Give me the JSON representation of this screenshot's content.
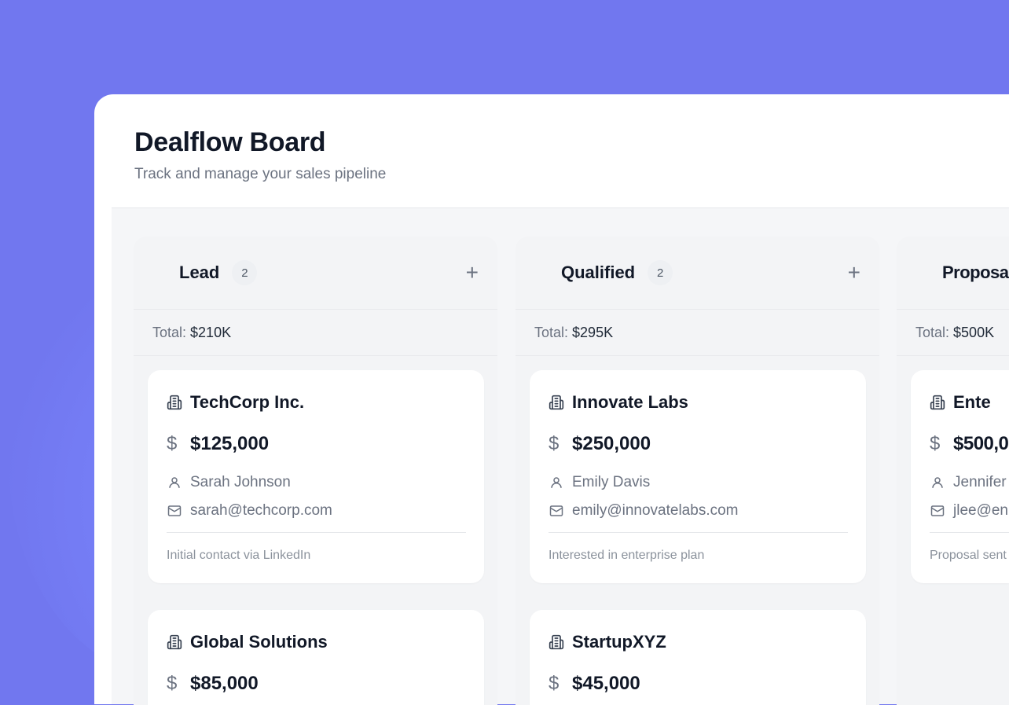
{
  "header": {
    "title": "Dealflow Board",
    "subtitle": "Track and manage your sales pipeline"
  },
  "columns": [
    {
      "name": "Lead",
      "count": "2",
      "total_label": "Total:",
      "total": "$210K",
      "cards": [
        {
          "company": "TechCorp Inc.",
          "amount": "$125,000",
          "contact": "Sarah Johnson",
          "email": "sarah@techcorp.com",
          "note": "Initial contact via LinkedIn"
        },
        {
          "company": "Global Solutions",
          "amount": "$85,000"
        }
      ]
    },
    {
      "name": "Qualified",
      "count": "2",
      "total_label": "Total:",
      "total": "$295K",
      "cards": [
        {
          "company": "Innovate Labs",
          "amount": "$250,000",
          "contact": "Emily Davis",
          "email": "emily@innovatelabs.com",
          "note": "Interested in enterprise plan"
        },
        {
          "company": "StartupXYZ",
          "amount": "$45,000"
        }
      ]
    },
    {
      "name": "Proposa",
      "total_label": "Total:",
      "total": "$500K",
      "cards": [
        {
          "company": "Ente",
          "amount": "$500,0",
          "contact": "Jennifer",
          "email": "jlee@en",
          "note": "Proposal sent"
        }
      ]
    }
  ],
  "icons": {
    "company": "building-icon",
    "amount": "dollar-icon",
    "contact": "user-icon",
    "email": "mail-icon",
    "add": "plus-icon"
  },
  "colors": {
    "background": "#7177ef",
    "title": "#111827",
    "muted": "#6b7280"
  }
}
